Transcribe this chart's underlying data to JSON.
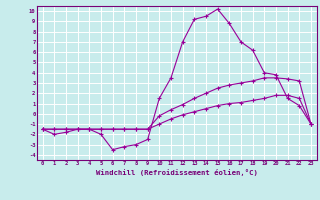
{
  "title": "",
  "xlabel": "Windchill (Refroidissement éolien,°C)",
  "background_color": "#c8ecec",
  "grid_color": "#ffffff",
  "line_color": "#990099",
  "xlim": [
    -0.5,
    23.5
  ],
  "ylim": [
    -4.5,
    10.5
  ],
  "xticks": [
    0,
    1,
    2,
    3,
    4,
    5,
    6,
    7,
    8,
    9,
    10,
    11,
    12,
    13,
    14,
    15,
    16,
    17,
    18,
    19,
    20,
    21,
    22,
    23
  ],
  "yticks": [
    10,
    9,
    8,
    7,
    6,
    5,
    4,
    3,
    2,
    1,
    0,
    -1,
    -2,
    -3,
    -4
  ],
  "x_data": [
    0,
    1,
    2,
    3,
    4,
    5,
    6,
    7,
    8,
    9,
    10,
    11,
    12,
    13,
    14,
    15,
    16,
    17,
    18,
    19,
    20,
    21,
    22,
    23
  ],
  "line1_y": [
    -1.5,
    -2.0,
    -1.8,
    -1.5,
    -1.5,
    -2.0,
    -3.5,
    -3.2,
    -3.0,
    -2.5,
    1.5,
    3.5,
    7.0,
    9.2,
    9.5,
    10.2,
    8.8,
    7.0,
    6.2,
    4.0,
    3.8,
    1.5,
    0.8,
    -1.0
  ],
  "line2_y": [
    -1.5,
    -1.5,
    -1.5,
    -1.5,
    -1.5,
    -1.5,
    -1.5,
    -1.5,
    -1.5,
    -1.5,
    -0.2,
    0.4,
    0.9,
    1.5,
    2.0,
    2.5,
    2.8,
    3.0,
    3.2,
    3.5,
    3.5,
    3.4,
    3.2,
    -1.0
  ],
  "line3_y": [
    -1.5,
    -1.5,
    -1.5,
    -1.5,
    -1.5,
    -1.5,
    -1.5,
    -1.5,
    -1.5,
    -1.5,
    -1.0,
    -0.5,
    -0.1,
    0.2,
    0.5,
    0.8,
    1.0,
    1.1,
    1.3,
    1.5,
    1.8,
    1.8,
    1.5,
    -1.0
  ]
}
